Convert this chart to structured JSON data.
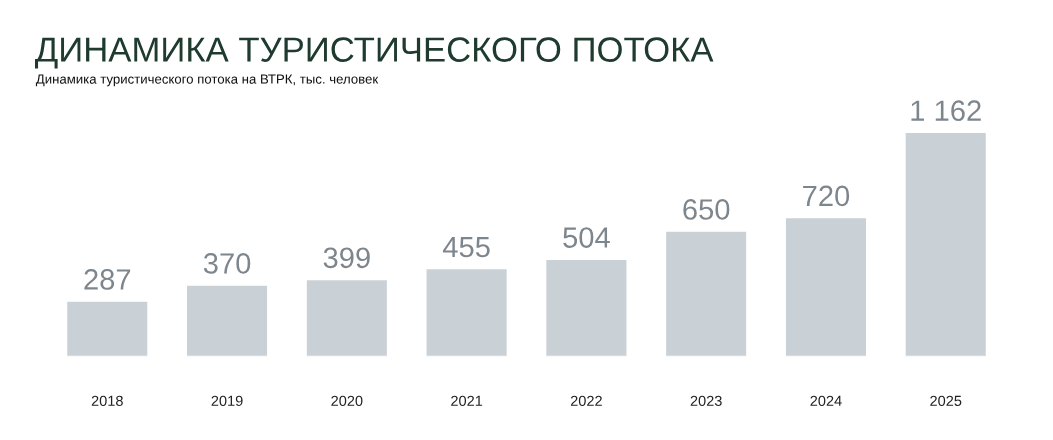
{
  "chart_data": {
    "type": "bar",
    "title": "ДИНАМИКА ТУРИСТИЧЕСКОГО ПОТОКА",
    "subtitle": "Динамика туристического потока на ВТРК, тыс. человек",
    "categories": [
      "2018",
      "2019",
      "2020",
      "2021",
      "2022",
      "2023",
      "2024",
      "2025"
    ],
    "values": [
      287,
      370,
      399,
      455,
      504,
      650,
      720,
      1162
    ],
    "value_labels": [
      "287",
      "370",
      "399",
      "455",
      "504",
      "650",
      "720",
      "1 162"
    ],
    "color": "#c9d0d6",
    "grid": false,
    "legend": false
  }
}
